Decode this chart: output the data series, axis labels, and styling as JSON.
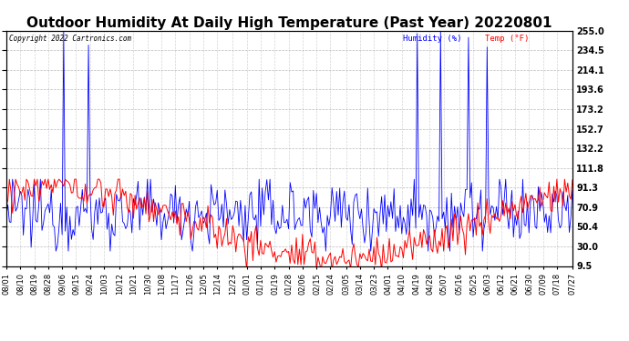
{
  "title": "Outdoor Humidity At Daily High Temperature (Past Year) 20220801",
  "copyright": "Copyright 2022 Cartronics.com",
  "legend_humidity": "Humidity (%)",
  "legend_temp": "Temp (°F)",
  "ylabel_right_ticks": [
    9.5,
    30.0,
    50.4,
    70.9,
    91.3,
    111.8,
    132.2,
    152.7,
    173.2,
    193.6,
    214.1,
    234.5,
    255.0
  ],
  "ylim": [
    9.5,
    255.0
  ],
  "humidity_color": "#0000ff",
  "temp_color": "#ff0000",
  "background_color": "#ffffff",
  "grid_color": "#aaaaaa",
  "title_fontsize": 11,
  "label_fontsize": 6,
  "tick_fontsize": 7,
  "n_points": 366,
  "x_tick_labels": [
    "08/01",
    "08/10",
    "08/19",
    "08/28",
    "09/06",
    "09/15",
    "09/24",
    "10/03",
    "10/12",
    "10/21",
    "10/30",
    "11/08",
    "11/17",
    "11/26",
    "12/05",
    "12/14",
    "12/23",
    "01/01",
    "01/10",
    "01/19",
    "01/28",
    "02/06",
    "02/15",
    "02/24",
    "03/05",
    "03/14",
    "03/23",
    "04/01",
    "04/10",
    "04/19",
    "04/28",
    "05/07",
    "05/16",
    "05/25",
    "06/03",
    "06/12",
    "06/21",
    "06/30",
    "07/09",
    "07/18",
    "07/27"
  ],
  "humidity_base_mean": 65,
  "humidity_base_std": 18,
  "humidity_min": 25,
  "humidity_max": 100,
  "spike_indices": [
    37,
    53,
    265,
    280,
    298,
    310
  ],
  "spike_values": [
    255,
    240,
    252,
    255,
    248,
    238
  ],
  "temp_summer_high": 88,
  "temp_winter_low": 15,
  "temp_noise_std": 10
}
